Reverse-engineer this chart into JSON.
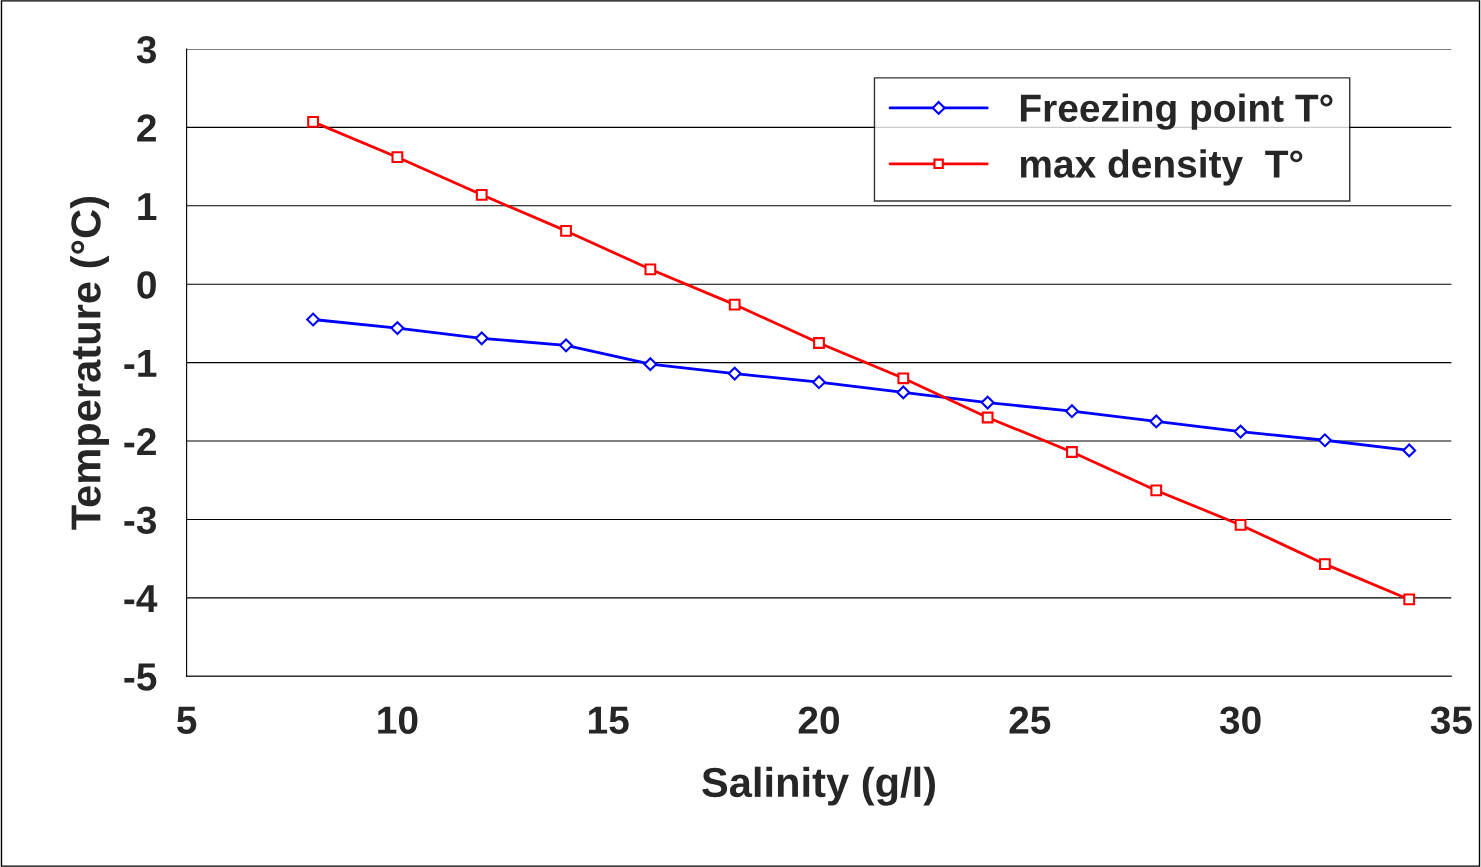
{
  "chart_data": {
    "type": "line",
    "xlabel": "Salinity (g/l)",
    "ylabel": "Temperature (°C)",
    "x": [
      8,
      10,
      12,
      14,
      16,
      18,
      20,
      22,
      24,
      26,
      28,
      30,
      32,
      34
    ],
    "series": [
      {
        "name": "Freezing point T°",
        "color": "#0000ff",
        "marker": "diamond",
        "values": [
          -0.45,
          -0.56,
          -0.69,
          -0.78,
          -1.02,
          -1.14,
          -1.25,
          -1.38,
          -1.51,
          -1.62,
          -1.75,
          -1.88,
          -1.99,
          -2.12
        ]
      },
      {
        "name": "max density  T°",
        "color": "#ff0000",
        "marker": "square",
        "values": [
          2.07,
          1.62,
          1.14,
          0.68,
          0.19,
          -0.26,
          -0.75,
          -1.2,
          -1.7,
          -2.14,
          -2.63,
          -3.07,
          -3.57,
          -4.02
        ]
      }
    ],
    "xlim": [
      5,
      35
    ],
    "xticks": [
      5,
      10,
      15,
      20,
      25,
      30,
      35
    ],
    "ylim": [
      -5,
      3
    ],
    "yticks": [
      -5,
      -4,
      -3,
      -2,
      -1,
      0,
      1,
      2,
      3
    ],
    "grid": "y",
    "legend": "top right",
    "line_style": "solid"
  }
}
